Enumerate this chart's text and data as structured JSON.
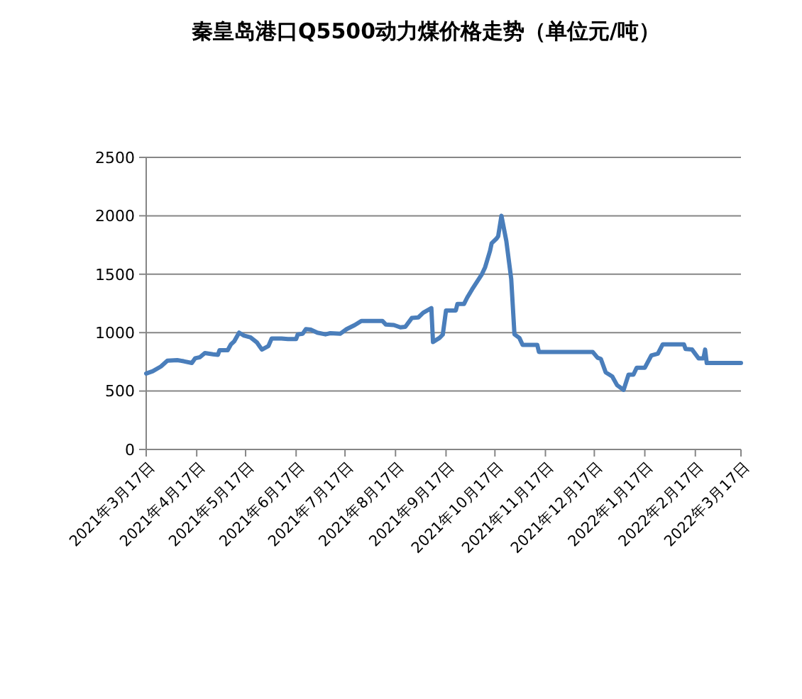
{
  "chart_data": {
    "type": "line",
    "title": "秦皇岛港口Q5500动力煤价格走势（单位元/吨）",
    "x": [
      "2021-03-17",
      "2021-03-21",
      "2021-03-26",
      "2021-03-30",
      "2021-04-05",
      "2021-04-09",
      "2021-04-14",
      "2021-04-16",
      "2021-04-19",
      "2021-04-22",
      "2021-04-27",
      "2021-04-30",
      "2021-05-01",
      "2021-05-06",
      "2021-05-08",
      "2021-05-10",
      "2021-05-13",
      "2021-05-16",
      "2021-05-20",
      "2021-05-24",
      "2021-05-27",
      "2021-05-31",
      "2021-06-02",
      "2021-06-08",
      "2021-06-12",
      "2021-06-17",
      "2021-06-18",
      "2021-06-21",
      "2021-06-23",
      "2021-06-26",
      "2021-06-30",
      "2021-07-05",
      "2021-07-08",
      "2021-07-14",
      "2021-07-18",
      "2021-07-23",
      "2021-07-27",
      "2021-08-09",
      "2021-08-11",
      "2021-08-16",
      "2021-08-20",
      "2021-08-23",
      "2021-08-27",
      "2021-08-31",
      "2021-09-03",
      "2021-09-08",
      "2021-09-09",
      "2021-09-13",
      "2021-09-15",
      "2021-09-17",
      "2021-09-23",
      "2021-09-24",
      "2021-09-28",
      "2021-09-30",
      "2021-10-03",
      "2021-10-09",
      "2021-10-11",
      "2021-10-14",
      "2021-10-15",
      "2021-10-18",
      "2021-10-19",
      "2021-10-21",
      "2021-10-24",
      "2021-10-27",
      "2021-10-29",
      "2021-11-01",
      "2021-11-03",
      "2021-11-12",
      "2021-11-13",
      "2021-12-16",
      "2021-12-19",
      "2021-12-21",
      "2021-12-24",
      "2021-12-28",
      "2021-12-31",
      "2022-01-04",
      "2022-01-07",
      "2022-01-10",
      "2022-01-12",
      "2022-01-17",
      "2022-01-21",
      "2022-01-25",
      "2022-01-28",
      "2022-02-10",
      "2022-02-11",
      "2022-02-15",
      "2022-02-19",
      "2022-02-22",
      "2022-02-23",
      "2022-02-24",
      "2022-03-17"
    ],
    "series": [
      {
        "color": "#4a7ebb",
        "values": [
          650,
          670,
          710,
          760,
          765,
          755,
          740,
          780,
          790,
          825,
          815,
          810,
          850,
          850,
          900,
          925,
          1000,
          975,
          960,
          915,
          855,
          885,
          950,
          950,
          945,
          945,
          985,
          990,
          1030,
          1025,
          1000,
          985,
          995,
          990,
          1030,
          1065,
          1100,
          1100,
          1070,
          1065,
          1045,
          1050,
          1125,
          1130,
          1170,
          1210,
          920,
          955,
          983,
          1190,
          1190,
          1245,
          1245,
          1300,
          1370,
          1500,
          1560,
          1700,
          1765,
          1805,
          1825,
          2000,
          1785,
          1460,
          985,
          955,
          895,
          895,
          835,
          835,
          785,
          775,
          660,
          625,
          550,
          510,
          640,
          640,
          700,
          700,
          805,
          820,
          900,
          900,
          860,
          855,
          780,
          780,
          855,
          740,
          740
        ]
      }
    ],
    "xlim": [
      "2021-03-17",
      "2022-03-17"
    ],
    "xticks": [
      {
        "value": "2021-03-17",
        "label": "2021年3月17日"
      },
      {
        "value": "2021-04-17",
        "label": "2021年4月17日"
      },
      {
        "value": "2021-05-17",
        "label": "2021年5月17日"
      },
      {
        "value": "2021-06-17",
        "label": "2021年6月17日"
      },
      {
        "value": "2021-07-17",
        "label": "2021年7月17日"
      },
      {
        "value": "2021-08-17",
        "label": "2021年8月17日"
      },
      {
        "value": "2021-09-17",
        "label": "2021年9月17日"
      },
      {
        "value": "2021-10-17",
        "label": "2021年10月17日"
      },
      {
        "value": "2021-11-17",
        "label": "2021年11月17日"
      },
      {
        "value": "2021-12-17",
        "label": "2021年12月17日"
      },
      {
        "value": "2022-01-17",
        "label": "2022年1月17日"
      },
      {
        "value": "2022-02-17",
        "label": "2022年2月17日"
      },
      {
        "value": "2022-03-17",
        "label": "2022年3月17日"
      }
    ],
    "ylim": [
      0,
      2500
    ],
    "yticks": [
      0,
      500,
      1000,
      1500,
      2000,
      2500
    ],
    "grid": "y",
    "marker": "none",
    "line_style": "solid"
  }
}
